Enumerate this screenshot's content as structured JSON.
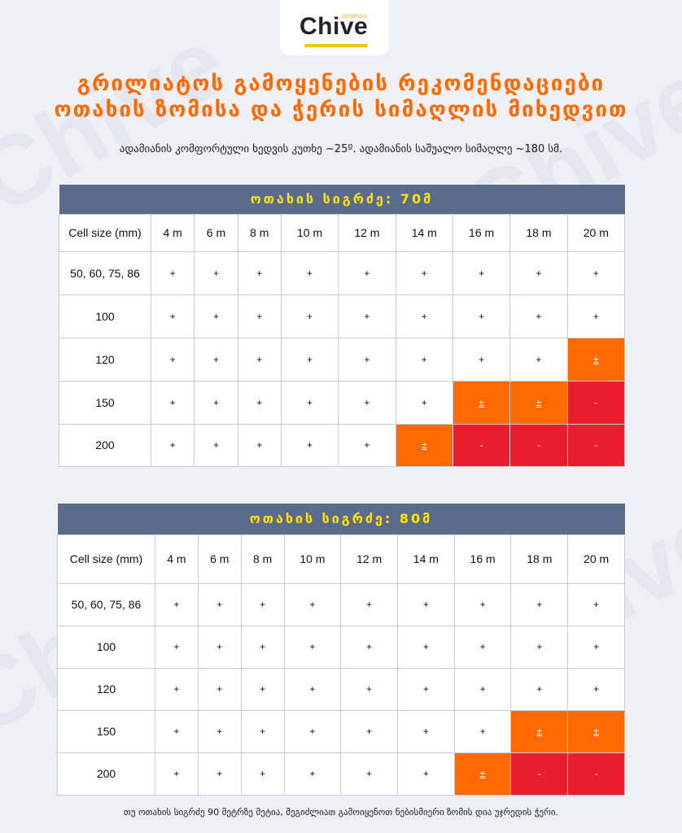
{
  "brand": {
    "name": "Chive",
    "sub": "GEORGIA"
  },
  "title_line1": "გრილიატოს გამოყენების რეკომენდაციები",
  "title_line2": "ოთახის ზომისა და ჭერის სიმაღლის მიხედვით",
  "subtitle": "ადამიანის კომფორტული ხედვის კუთხე ~25º. ადამიანის საშუალო სიმაღლე ~180 სმ.",
  "tables": [
    {
      "header": "ოთახის სიგრძე: 70მ",
      "columns": [
        "Cell size (mm)",
        "4 m",
        "6 m",
        "8 m",
        "10 m",
        "12 m",
        "14 m",
        "16 m",
        "18 m",
        "20 m"
      ],
      "rows": [
        {
          "label": "50, 60, 75, 86",
          "cells": [
            "+",
            "+",
            "+",
            "+",
            "+",
            "+",
            "+",
            "+",
            "+"
          ]
        },
        {
          "label": "100",
          "cells": [
            "+",
            "+",
            "+",
            "+",
            "+",
            "+",
            "+",
            "+",
            "+"
          ]
        },
        {
          "label": "120",
          "cells": [
            "+",
            "+",
            "+",
            "+",
            "+",
            "+",
            "+",
            "+",
            "±"
          ]
        },
        {
          "label": "150",
          "cells": [
            "+",
            "+",
            "+",
            "+",
            "+",
            "+",
            "±",
            "±",
            "-"
          ]
        },
        {
          "label": "200",
          "cells": [
            "+",
            "+",
            "+",
            "+",
            "+",
            "±",
            "-",
            "-",
            "-"
          ]
        }
      ]
    },
    {
      "header": "ოთახის სიგრძე: 80მ",
      "columns": [
        "Cell size (mm)",
        "4 m",
        "6 m",
        "8 m",
        "10 m",
        "12 m",
        "14 m",
        "16 m",
        "18 m",
        "20 m"
      ],
      "rows": [
        {
          "label": "50, 60, 75, 86",
          "cells": [
            "+",
            "+",
            "+",
            "+",
            "+",
            "+",
            "+",
            "+",
            "+"
          ]
        },
        {
          "label": "100",
          "cells": [
            "+",
            "+",
            "+",
            "+",
            "+",
            "+",
            "+",
            "+",
            "+"
          ]
        },
        {
          "label": "120",
          "cells": [
            "+",
            "+",
            "+",
            "+",
            "+",
            "+",
            "+",
            "+",
            "+"
          ]
        },
        {
          "label": "150",
          "cells": [
            "+",
            "+",
            "+",
            "+",
            "+",
            "+",
            "+",
            "±",
            "±"
          ]
        },
        {
          "label": "200",
          "cells": [
            "+",
            "+",
            "+",
            "+",
            "+",
            "+",
            "±",
            "-",
            "-"
          ]
        }
      ]
    }
  ],
  "footer": "თუ ოთახის სიგრძე 90 მეტრზე მეტია, შეგიძლიათ გამოიყენოთ ნებისმიერი ზომის დია უჯრედის ჭერი.",
  "colors": {
    "accent": "#ff6a00",
    "header_bg": "#5b6b8c",
    "header_text": "#ffe600",
    "warning": "#ff6a00",
    "negative": "#e81e2f"
  }
}
